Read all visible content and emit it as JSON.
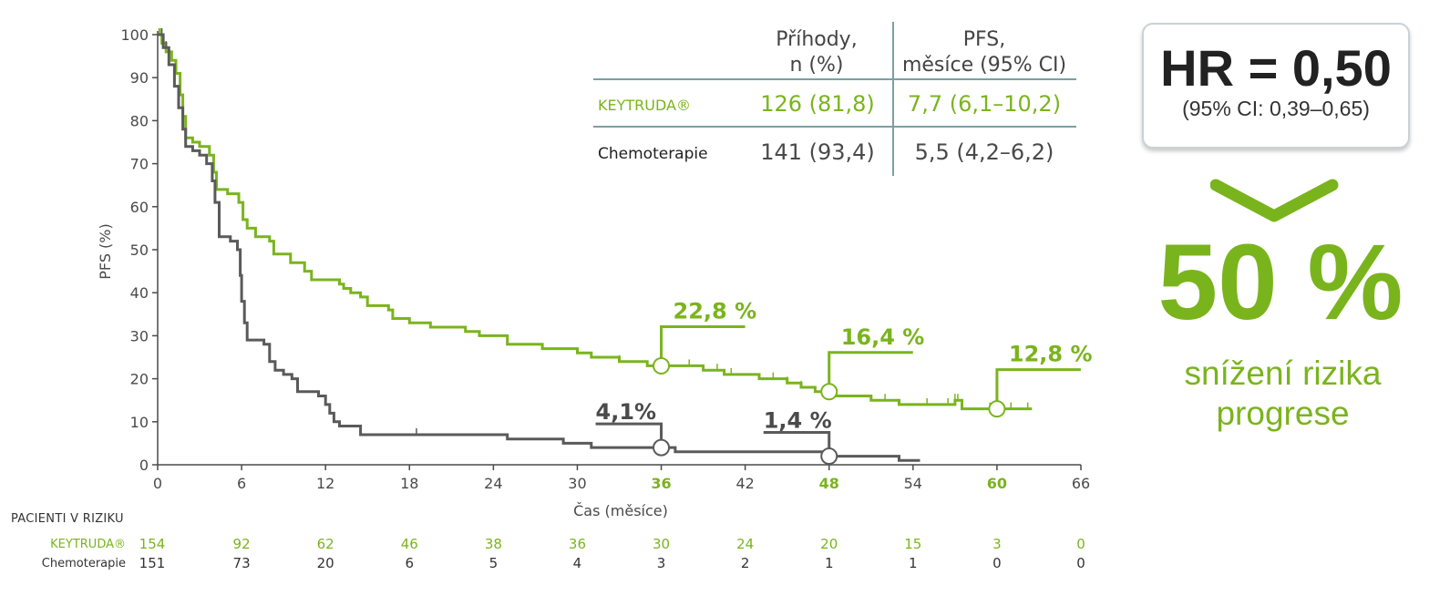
{
  "colors": {
    "keytruda": "#7ab41d",
    "chemo": "#5a5a5a",
    "axis": "#4a4a4a",
    "divider": "#7e9ea0"
  },
  "chart_data": {
    "type": "line",
    "ylabel": "PFS (%)",
    "xlabel": "Čas (měsíce)",
    "xlim": [
      0,
      66
    ],
    "ylim": [
      0,
      100
    ],
    "x_ticks": [
      0,
      6,
      12,
      18,
      24,
      30,
      36,
      42,
      48,
      54,
      60,
      66
    ],
    "x_ticks_highlighted": [
      36,
      48,
      60
    ],
    "y_ticks": [
      0,
      10,
      20,
      30,
      40,
      50,
      60,
      70,
      80,
      90,
      100
    ],
    "grid": false,
    "series": [
      {
        "name": "KEYTRUDA®",
        "color": "#7ab41d",
        "steps": [
          [
            0,
            100
          ],
          [
            0.3,
            98
          ],
          [
            0.6,
            96
          ],
          [
            1,
            94
          ],
          [
            1.3,
            91
          ],
          [
            1.6,
            86
          ],
          [
            1.8,
            81
          ],
          [
            2,
            76
          ],
          [
            2.5,
            75
          ],
          [
            3,
            74
          ],
          [
            3.7,
            72
          ],
          [
            4,
            68
          ],
          [
            4.2,
            64
          ],
          [
            5,
            63
          ],
          [
            5.8,
            61
          ],
          [
            6.1,
            57
          ],
          [
            6.4,
            55
          ],
          [
            7,
            53
          ],
          [
            8,
            52
          ],
          [
            8.3,
            49
          ],
          [
            9.5,
            47
          ],
          [
            10.5,
            45
          ],
          [
            11,
            43
          ],
          [
            13,
            42
          ],
          [
            13.3,
            41
          ],
          [
            13.8,
            40
          ],
          [
            14.5,
            39
          ],
          [
            15,
            37
          ],
          [
            16.5,
            36
          ],
          [
            16.8,
            34
          ],
          [
            18,
            33
          ],
          [
            19.5,
            32
          ],
          [
            22,
            31
          ],
          [
            23,
            30
          ],
          [
            25,
            28
          ],
          [
            27.5,
            27
          ],
          [
            30,
            26
          ],
          [
            31,
            25
          ],
          [
            33,
            24
          ],
          [
            35,
            23
          ],
          [
            39,
            22
          ],
          [
            40.5,
            21
          ],
          [
            43,
            20
          ],
          [
            45,
            19
          ],
          [
            46,
            18
          ],
          [
            47,
            17
          ],
          [
            48.5,
            16
          ],
          [
            51,
            15
          ],
          [
            53,
            14
          ],
          [
            55,
            14
          ],
          [
            57,
            15
          ],
          [
            57.5,
            13
          ],
          [
            59,
            13
          ],
          [
            62.5,
            13
          ]
        ],
        "censored_x": [
          0.1,
          0.2,
          0.4,
          33,
          38,
          40,
          41,
          44,
          45,
          46,
          52,
          55,
          56.5,
          57,
          57.2,
          59.5,
          61,
          62.2
        ],
        "landmarks": [
          {
            "x": 36,
            "y": 22.8,
            "label": "22,8 %"
          },
          {
            "x": 48,
            "y": 16.4,
            "label": "16,4 %"
          },
          {
            "x": 60,
            "y": 12.8,
            "label": "12,8 %"
          }
        ]
      },
      {
        "name": "Chemoterapie",
        "color": "#5a5a5a",
        "steps": [
          [
            0,
            100
          ],
          [
            0.4,
            97
          ],
          [
            0.8,
            93
          ],
          [
            1.2,
            88
          ],
          [
            1.5,
            83
          ],
          [
            1.8,
            78
          ],
          [
            2,
            74
          ],
          [
            2.5,
            73
          ],
          [
            3,
            72
          ],
          [
            3.5,
            70
          ],
          [
            3.9,
            66
          ],
          [
            4.1,
            61
          ],
          [
            4.4,
            53
          ],
          [
            5.2,
            52
          ],
          [
            5.7,
            50
          ],
          [
            5.9,
            44
          ],
          [
            6,
            38
          ],
          [
            6.2,
            33
          ],
          [
            6.4,
            29
          ],
          [
            7.6,
            28
          ],
          [
            8,
            24
          ],
          [
            8.4,
            22
          ],
          [
            9,
            21
          ],
          [
            9.6,
            20
          ],
          [
            10,
            17
          ],
          [
            11.5,
            16
          ],
          [
            12,
            14
          ],
          [
            12.3,
            12
          ],
          [
            12.6,
            10
          ],
          [
            13,
            9
          ],
          [
            14.5,
            7
          ],
          [
            25,
            6
          ],
          [
            29,
            5
          ],
          [
            31,
            4
          ],
          [
            37,
            3
          ],
          [
            48,
            2
          ],
          [
            53,
            1
          ],
          [
            54.5,
            1
          ]
        ],
        "censored_x": [
          0.3,
          0.6,
          12.6,
          14.5,
          18.5
        ],
        "landmarks": [
          {
            "x": 36,
            "y": 4.1,
            "label": "4,1%"
          },
          {
            "x": 48,
            "y": 1.4,
            "label": "1,4 %"
          }
        ]
      }
    ],
    "at_risk": {
      "title": "PACIENTI V RIZIKU",
      "times": [
        0,
        6,
        12,
        18,
        24,
        30,
        36,
        42,
        48,
        54,
        60,
        66
      ],
      "keytruda": {
        "label": "KEYTRUDA®",
        "values": [
          154,
          92,
          62,
          46,
          38,
          36,
          30,
          24,
          20,
          15,
          3,
          0
        ]
      },
      "chemo": {
        "label": "Chemoterapie",
        "values": [
          151,
          73,
          20,
          6,
          5,
          4,
          3,
          2,
          1,
          1,
          0,
          0
        ]
      }
    },
    "summary_table": {
      "col1_header_line1": "Příhody,",
      "col1_header_line2": "n (%)",
      "col2_header_line1": "PFS,",
      "col2_header_line2": "měsíce (95% CI)",
      "rows": [
        {
          "name": "KEYTRUDA®",
          "events": "126 (81,8)",
          "pfs": "7,7 (6,1–10,2)"
        },
        {
          "name": "Chemoterapie",
          "events": "141 (93,4)",
          "pfs": "5,5 (4,2–6,2)"
        }
      ]
    }
  },
  "hr_box": {
    "main": "HR = 0,50",
    "ci": "(95% CI: 0,39–0,65)"
  },
  "reduction": {
    "percent": "50 %",
    "line1": "snížení rizika",
    "line2": "progrese"
  }
}
